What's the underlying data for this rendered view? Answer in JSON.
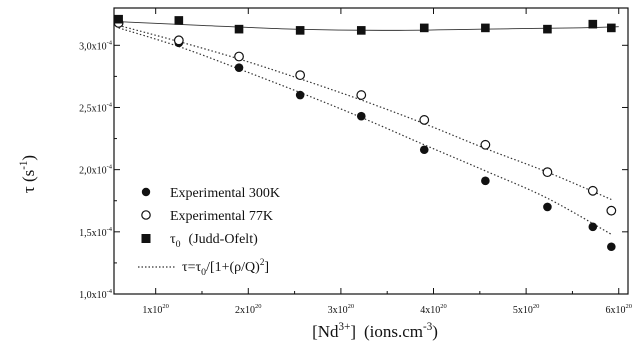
{
  "chart_data": {
    "type": "scatter",
    "title": "",
    "xlabel": {
      "base": "[Nd",
      "sup": "3+",
      "close": "]",
      "units": "(ions.cm",
      "units_sup": "-3",
      "units_close": ")"
    },
    "ylabel": {
      "base": "τ (s",
      "sup": "-1",
      "close": ")"
    },
    "xlim": [
      5.5e+19,
      6.1e+20
    ],
    "ylim": [
      0.0001,
      0.00033
    ],
    "x_ticks": [
      {
        "value": 1e+20,
        "mantissa": "1x10",
        "exp": "20"
      },
      {
        "value": 2e+20,
        "mantissa": "2x10",
        "exp": "20"
      },
      {
        "value": 3e+20,
        "mantissa": "3x10",
        "exp": "20"
      },
      {
        "value": 4e+20,
        "mantissa": "4x10",
        "exp": "20"
      },
      {
        "value": 5e+20,
        "mantissa": "5x10",
        "exp": "20"
      },
      {
        "value": 6e+20,
        "mantissa": "6x10",
        "exp": "20"
      }
    ],
    "y_ticks": [
      {
        "value": 0.0001,
        "mantissa": "1,0x10",
        "exp": "-4"
      },
      {
        "value": 0.00015,
        "mantissa": "1,5x10",
        "exp": "-4"
      },
      {
        "value": 0.0002,
        "mantissa": "2,0x10",
        "exp": "-4"
      },
      {
        "value": 0.00025,
        "mantissa": "2,5x10",
        "exp": "-4"
      },
      {
        "value": 0.0003,
        "mantissa": "3,0x10",
        "exp": "-4"
      }
    ],
    "grid": false,
    "legend_position": "left-middle",
    "series": [
      {
        "name": "Experimental 300K",
        "marker": "filled-circle",
        "x": [
          6e+19,
          1.25e+20,
          1.9e+20,
          2.56e+20,
          3.22e+20,
          3.9e+20,
          4.56e+20,
          5.23e+20,
          5.72e+20,
          5.92e+20
        ],
        "y": [
          0.000318,
          0.000302,
          0.000282,
          0.00026,
          0.000243,
          0.000216,
          0.000191,
          0.00017,
          0.000154,
          0.000138
        ]
      },
      {
        "name": "Experimental 77K",
        "marker": "open-circle",
        "x": [
          6e+19,
          1.25e+20,
          1.9e+20,
          2.56e+20,
          3.22e+20,
          3.9e+20,
          4.56e+20,
          5.23e+20,
          5.72e+20,
          5.92e+20
        ],
        "y": [
          0.000318,
          0.000304,
          0.000291,
          0.000276,
          0.00026,
          0.00024,
          0.00022,
          0.000198,
          0.000183,
          0.000167
        ]
      },
      {
        "name": "τ0 (Judd-Ofelt)",
        "legend_base": "τ",
        "legend_sub": "0",
        "legend_rest": "(Judd-Ofelt)",
        "marker": "filled-square",
        "x": [
          6e+19,
          1.25e+20,
          1.9e+20,
          2.56e+20,
          3.22e+20,
          3.9e+20,
          4.56e+20,
          5.23e+20,
          5.72e+20,
          5.92e+20
        ],
        "y": [
          0.000321,
          0.00032,
          0.000313,
          0.000312,
          0.000312,
          0.000314,
          0.000314,
          0.000313,
          0.000317,
          0.000314
        ]
      }
    ],
    "fits": [
      {
        "name": "fit-300K",
        "style": "dotted",
        "x": [
          6e+19,
          1.25e+20,
          1.9e+20,
          2.56e+20,
          3.22e+20,
          3.9e+20,
          4.56e+20,
          5.23e+20,
          5.92e+20
        ],
        "y": [
          0.000314,
          0.000299,
          0.000281,
          0.000262,
          0.000242,
          0.00022,
          0.000199,
          0.000177,
          0.000148
        ]
      },
      {
        "name": "fit-77K",
        "style": "dotted",
        "x": [
          6e+19,
          1.25e+20,
          1.9e+20,
          2.56e+20,
          3.22e+20,
          3.9e+20,
          4.56e+20,
          5.23e+20,
          5.92e+20
        ],
        "y": [
          0.000316,
          0.000303,
          0.000289,
          0.000273,
          0.000256,
          0.000237,
          0.000217,
          0.000198,
          0.000176
        ]
      },
      {
        "name": "fit-tau0",
        "style": "solid",
        "x": [
          6e+19,
          1.5e+20,
          2.5e+20,
          3.5e+20,
          4.5e+20,
          5.5e+20,
          6e+20
        ],
        "y": [
          0.000319,
          0.000316,
          0.000313,
          0.000312,
          0.000313,
          0.000314,
          0.000315
        ]
      }
    ],
    "legend_formula": {
      "lhs": "τ=τ",
      "sub1": "0",
      "mid": "/[1+(ρ/Q)",
      "sup": "2",
      "end": "]"
    }
  }
}
